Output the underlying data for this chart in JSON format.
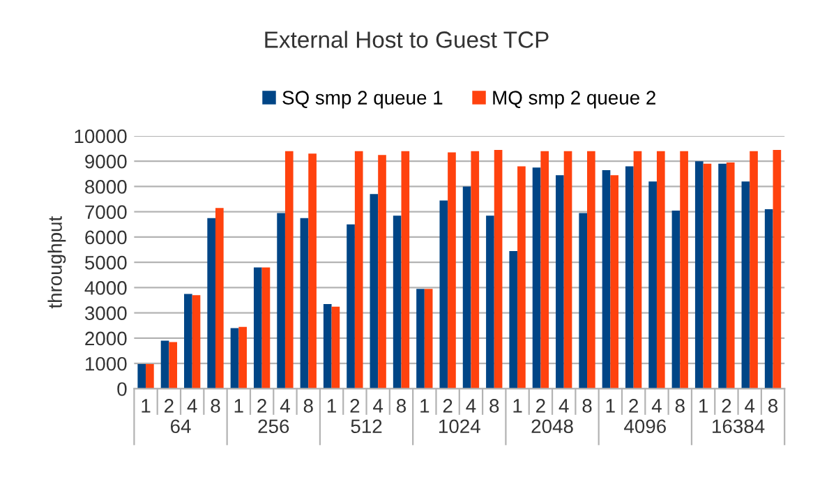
{
  "chart_data": {
    "type": "bar",
    "title": "External Host to Guest TCP",
    "ylabel": "throughput",
    "categories": [
      "1",
      "2",
      "4",
      "8",
      "1",
      "2",
      "4",
      "8",
      "1",
      "2",
      "4",
      "8",
      "1",
      "2",
      "4",
      "8",
      "1",
      "2",
      "4",
      "8",
      "1",
      "2",
      "4",
      "8",
      "1",
      "2",
      "4",
      "8"
    ],
    "annotations": [
      "64",
      "256",
      "512",
      "1024",
      "2048",
      "4096",
      "16384"
    ],
    "series": [
      {
        "name": "SQ smp 2 queue 1",
        "color": "#004586",
        "values": [
          980,
          1900,
          3750,
          6750,
          2400,
          4800,
          6950,
          6750,
          3350,
          6500,
          7700,
          6850,
          3950,
          7450,
          8000,
          6850,
          5450,
          8750,
          8450,
          6950,
          8650,
          8800,
          8200,
          7050,
          9000,
          8900,
          8200,
          7100
        ]
      },
      {
        "name": "MQ smp 2 queue 2",
        "color": "#ff420e",
        "values": [
          980,
          1850,
          3700,
          7150,
          2450,
          4800,
          9400,
          9300,
          3250,
          9400,
          9250,
          9400,
          3950,
          9350,
          9400,
          9450,
          8800,
          9400,
          9400,
          9400,
          8450,
          9400,
          9400,
          9400,
          8900,
          8950,
          9400,
          9450
        ]
      }
    ],
    "ylim": [
      0,
      10000
    ],
    "yticks": [
      0,
      1000,
      2000,
      3000,
      4000,
      5000,
      6000,
      7000,
      8000,
      9000,
      10000
    ],
    "grid": "y",
    "legend": "top"
  }
}
